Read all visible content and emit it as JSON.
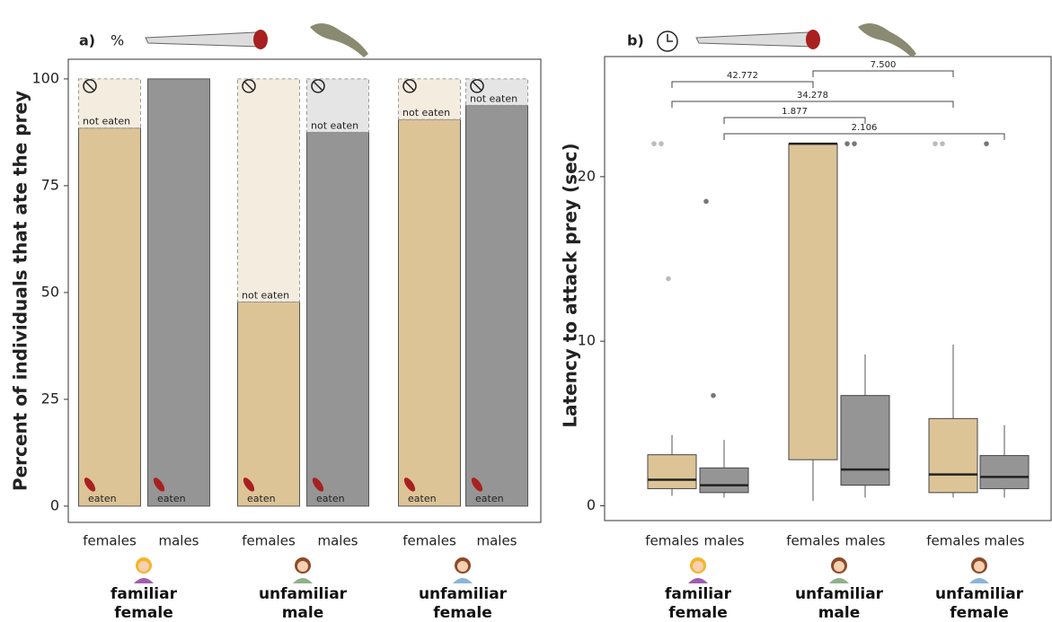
{
  "chart_data": [
    {
      "type": "stacked_bar",
      "panel_label": "a)",
      "unit_symbol": "%",
      "y_label": "Percent of individuals that ate the prey",
      "categories": [
        "females",
        "males",
        "females",
        "males",
        "females",
        "males"
      ],
      "groups": [
        "familiar female",
        "unfamiliar male",
        "unfamiliar female"
      ],
      "series": [
        {
          "name": "eaten",
          "colors": [
            "#dcc497",
            "#959595",
            "#dcc497",
            "#959595",
            "#dcc497",
            "#959595"
          ],
          "values": [
            88.5,
            100,
            47.8,
            87.5,
            90.5,
            93.8
          ]
        },
        {
          "name": "not eaten",
          "colors": [
            "#f5ece0",
            "#e5e5e5",
            "#f5ece0",
            "#e5e5e5",
            "#f5ece0",
            "#e5e5e5"
          ],
          "values": [
            11.5,
            0,
            52.2,
            12.5,
            9.5,
            6.2
          ]
        }
      ],
      "ylim": [
        -3.8,
        104.6
      ],
      "yticks": [
        0,
        25,
        50,
        75,
        100
      ]
    },
    {
      "type": "box",
      "panel_label": "b)",
      "y_label": "Latency to attack prey (sec)",
      "categories": [
        "females",
        "males",
        "females",
        "males",
        "females",
        "males"
      ],
      "groups": [
        "familiar female",
        "unfamiliar male",
        "unfamiliar female"
      ],
      "colors": [
        "#dcc497",
        "#959595",
        "#dcc497",
        "#959595",
        "#dcc497",
        "#959595"
      ],
      "boxes": [
        {
          "whisker_low": 0.6,
          "q1": 1.04,
          "median": 1.58,
          "q3": 3.1,
          "whisker_high": 4.3,
          "outliers": [
            22,
            22,
            13.8
          ]
        },
        {
          "whisker_low": 0.5,
          "q1": 0.8,
          "median": 1.25,
          "q3": 2.3,
          "whisker_high": 4.0,
          "outliers": [
            18.5,
            6.7
          ]
        },
        {
          "whisker_low": 0.3,
          "q1": 2.8,
          "median": 22,
          "q3": 22,
          "whisker_high": 22,
          "outliers": []
        },
        {
          "whisker_low": 0.5,
          "q1": 1.25,
          "median": 2.2,
          "q3": 6.7,
          "whisker_high": 9.2,
          "outliers": [
            22,
            22
          ]
        },
        {
          "whisker_low": 0.5,
          "q1": 0.8,
          "median": 1.9,
          "q3": 5.3,
          "whisker_high": 9.8,
          "outliers": [
            22,
            22
          ]
        },
        {
          "whisker_low": 0.5,
          "q1": 1.04,
          "median": 1.75,
          "q3": 3.05,
          "whisker_high": 4.9,
          "outliers": [
            22
          ]
        }
      ],
      "annotations": [
        "42.772",
        "7.500",
        "34.278",
        "1.877",
        "2.106"
      ],
      "ylim": [
        -0.9,
        27.3
      ],
      "yticks": [
        0,
        10,
        20
      ]
    }
  ]
}
